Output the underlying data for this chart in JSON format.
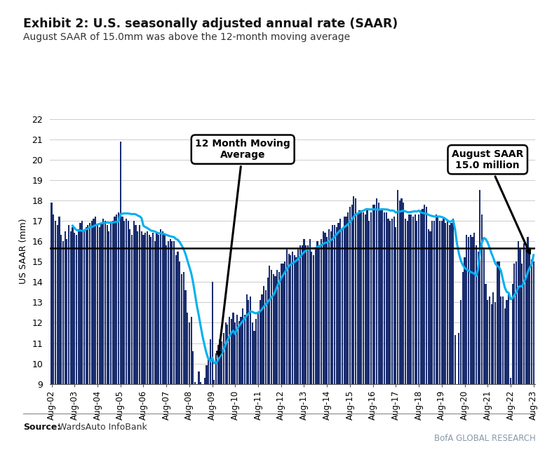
{
  "title": "Exhibit 2: U.S. seasonally adjusted annual rate (SAAR)",
  "subtitle": "August SAAR of 15.0mm was above the 12-month moving average",
  "ylabel": "US SAAR (mm)",
  "source_label": "Source:",
  "source_text": "WardsAuto InfoBank",
  "bofa_text": "BofA GLOBAL RESEARCH",
  "bar_color": "#1a2d6e",
  "line_color": "#00b0f0",
  "hline_color": "#000000",
  "hline_value": 15.65,
  "ylim": [
    9,
    22
  ],
  "yticks": [
    9,
    10,
    11,
    12,
    13,
    14,
    15,
    16,
    17,
    18,
    19,
    20,
    21,
    22
  ],
  "title_accent_color": "#1a72c4",
  "annotation1_text": "12 Month Moving\nAverage",
  "annotation2_text": "August SAAR\n15.0 million",
  "saar_values": [
    17.9,
    17.3,
    17.0,
    16.8,
    17.2,
    16.3,
    16.0,
    16.5,
    16.1,
    16.8,
    16.5,
    16.7,
    16.4,
    16.3,
    16.6,
    16.9,
    17.0,
    16.5,
    16.7,
    16.8,
    16.9,
    17.0,
    17.1,
    17.2,
    16.8,
    16.7,
    16.9,
    17.1,
    17.0,
    16.8,
    16.5,
    16.9,
    17.0,
    17.2,
    17.3,
    17.4,
    20.9,
    17.2,
    17.0,
    17.1,
    17.0,
    16.6,
    16.3,
    17.0,
    16.8,
    16.5,
    16.8,
    16.5,
    16.3,
    16.4,
    16.5,
    16.3,
    16.2,
    16.4,
    16.0,
    16.4,
    16.3,
    16.6,
    16.5,
    16.3,
    15.8,
    16.0,
    16.1,
    16.0,
    16.0,
    15.3,
    15.5,
    15.0,
    14.4,
    14.5,
    13.6,
    12.5,
    12.0,
    12.3,
    10.6,
    9.1,
    9.0,
    9.6,
    9.1,
    9.0,
    9.3,
    9.9,
    10.3,
    11.2,
    14.0,
    9.2,
    10.5,
    10.9,
    11.2,
    11.1,
    11.5,
    12.0,
    11.9,
    12.3,
    12.2,
    12.5,
    12.0,
    12.4,
    12.1,
    12.3,
    12.7,
    12.4,
    13.4,
    13.1,
    13.3,
    12.0,
    11.6,
    12.2,
    12.5,
    13.1,
    13.4,
    13.8,
    13.6,
    14.2,
    14.8,
    14.6,
    14.4,
    14.3,
    14.6,
    14.5,
    14.9,
    14.9,
    15.0,
    15.6,
    15.4,
    15.3,
    15.5,
    15.3,
    15.2,
    15.6,
    15.8,
    15.8,
    16.1,
    15.8,
    15.8,
    16.1,
    15.5,
    15.3,
    15.6,
    16.0,
    15.8,
    16.1,
    16.5,
    16.4,
    16.2,
    16.6,
    16.5,
    16.8,
    16.8,
    16.7,
    16.9,
    17.1,
    16.6,
    17.2,
    17.2,
    17.4,
    17.7,
    17.8,
    18.2,
    18.1,
    17.3,
    17.5,
    17.5,
    17.4,
    17.3,
    17.5,
    17.0,
    17.4,
    17.8,
    17.8,
    18.1,
    17.9,
    17.5,
    17.6,
    17.4,
    17.4,
    17.1,
    17.0,
    17.1,
    17.2,
    16.7,
    18.5,
    18.0,
    18.1,
    17.9,
    17.1,
    17.0,
    17.3,
    17.3,
    17.2,
    17.3,
    17.0,
    17.3,
    17.5,
    17.6,
    17.8,
    17.7,
    16.6,
    16.5,
    17.0,
    17.0,
    17.3,
    17.2,
    17.0,
    17.0,
    17.1,
    16.9,
    17.0,
    16.8,
    16.9,
    17.1,
    11.4,
    8.7,
    11.5,
    13.1,
    14.5,
    15.2,
    16.3,
    16.2,
    16.3,
    16.2,
    16.4,
    15.8,
    15.5,
    18.5,
    17.3,
    15.7,
    13.9,
    13.1,
    13.3,
    12.9,
    13.5,
    13.0,
    15.0,
    15.0,
    13.3,
    13.3,
    12.7,
    13.1,
    13.4,
    9.3,
    13.9,
    14.9,
    15.0,
    16.0,
    15.6,
    14.9,
    15.9,
    15.6,
    16.2,
    15.7,
    15.1,
    15.0
  ],
  "xtick_labels": [
    "Aug-02",
    "Aug-03",
    "Aug-04",
    "Aug-05",
    "Aug-06",
    "Aug-07",
    "Aug-08",
    "Aug-09",
    "Aug-10",
    "Aug-11",
    "Aug-12",
    "Aug-13",
    "Aug-14",
    "Aug-15",
    "Aug-16",
    "Aug-17",
    "Aug-18",
    "Aug-19",
    "Aug-20",
    "Aug-21",
    "Aug-22",
    "Aug-23"
  ],
  "xtick_positions": [
    0,
    12,
    24,
    36,
    48,
    60,
    72,
    84,
    96,
    108,
    120,
    132,
    144,
    156,
    168,
    180,
    192,
    204,
    216,
    228,
    240,
    252
  ]
}
